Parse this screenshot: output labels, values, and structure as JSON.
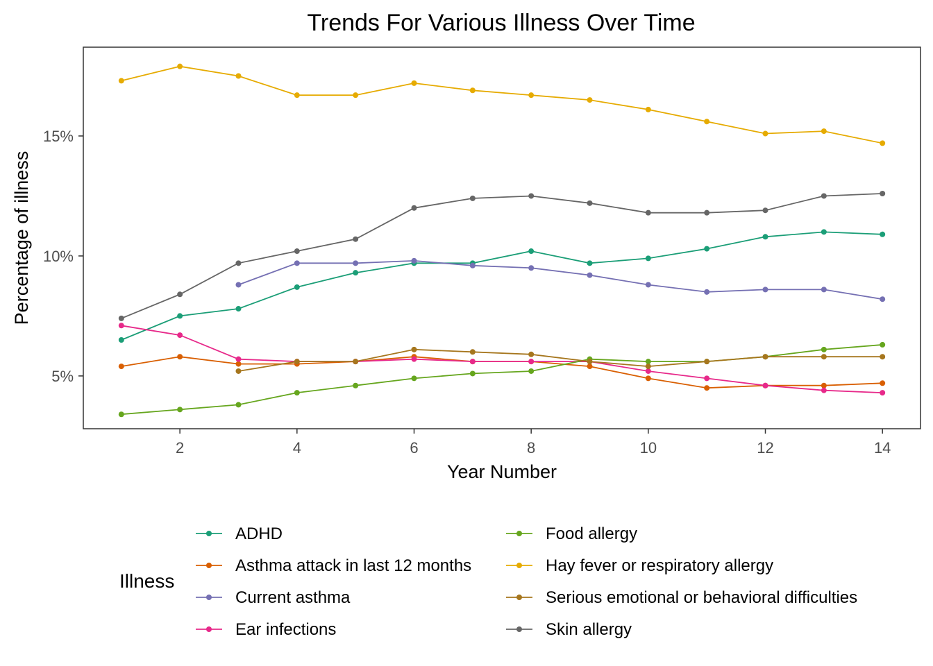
{
  "chart_data": {
    "type": "line",
    "title": "Trends For Various Illness Over Time",
    "xlabel": "Year Number",
    "ylabel": "Percentage of illness",
    "xlim": [
      0.35,
      14.65
    ],
    "ylim": [
      2.8,
      18.7
    ],
    "x_ticks": [
      2,
      4,
      6,
      8,
      10,
      12,
      14
    ],
    "x_tick_labels": [
      "2",
      "4",
      "6",
      "8",
      "10",
      "12",
      "14"
    ],
    "y_ticks": [
      5,
      10,
      15
    ],
    "y_tick_labels": [
      "5%",
      "10%",
      "15%"
    ],
    "grid": false,
    "legend": {
      "title": "Illness",
      "position": "bottom",
      "columns": 2
    },
    "series": [
      {
        "name": "ADHD",
        "color": "#1b9e77",
        "x": [
          1,
          2,
          3,
          4,
          5,
          6,
          7,
          8,
          9,
          10,
          11,
          12,
          13,
          14
        ],
        "values": [
          6.5,
          7.5,
          7.8,
          8.7,
          9.3,
          9.7,
          9.7,
          10.2,
          9.7,
          9.9,
          10.3,
          10.8,
          11.0,
          10.9
        ]
      },
      {
        "name": "Asthma attack in last 12 months",
        "color": "#d95f02",
        "x": [
          1,
          2,
          3,
          4,
          5,
          6,
          7,
          8,
          9,
          10,
          11,
          12,
          13,
          14
        ],
        "values": [
          5.4,
          5.8,
          5.5,
          5.5,
          5.6,
          5.8,
          5.6,
          5.6,
          5.4,
          4.9,
          4.5,
          4.6,
          4.6,
          4.7
        ]
      },
      {
        "name": "Current asthma",
        "color": "#7570b3",
        "x": [
          3,
          4,
          5,
          6,
          7,
          8,
          9,
          10,
          11,
          12,
          13,
          14
        ],
        "values": [
          8.8,
          9.7,
          9.7,
          9.8,
          9.6,
          9.5,
          9.2,
          8.8,
          8.5,
          8.6,
          8.6,
          8.2
        ]
      },
      {
        "name": "Ear infections",
        "color": "#e7298a",
        "x": [
          1,
          2,
          3,
          4,
          5,
          6,
          7,
          8,
          9,
          10,
          11,
          12,
          13,
          14
        ],
        "values": [
          7.1,
          6.7,
          5.7,
          5.6,
          5.6,
          5.7,
          5.6,
          5.6,
          5.6,
          5.2,
          4.9,
          4.6,
          4.4,
          4.3
        ]
      },
      {
        "name": "Food allergy",
        "color": "#66a61e",
        "x": [
          1,
          2,
          3,
          4,
          5,
          6,
          7,
          8,
          9,
          10,
          11,
          12,
          13,
          14
        ],
        "values": [
          3.4,
          3.6,
          3.8,
          4.3,
          4.6,
          4.9,
          5.1,
          5.2,
          5.7,
          5.6,
          5.6,
          5.8,
          6.1,
          6.3
        ]
      },
      {
        "name": "Hay fever or respiratory allergy",
        "color": "#e6ab02",
        "x": [
          1,
          2,
          3,
          4,
          5,
          6,
          7,
          8,
          9,
          10,
          11,
          12,
          13,
          14
        ],
        "values": [
          17.3,
          17.9,
          17.5,
          16.7,
          16.7,
          17.2,
          16.9,
          16.7,
          16.5,
          16.1,
          15.6,
          15.1,
          15.2,
          14.7
        ]
      },
      {
        "name": "Serious emotional or behavioral difficulties",
        "color": "#a6761d",
        "x": [
          3,
          4,
          5,
          6,
          7,
          8,
          9,
          10,
          11,
          12,
          13,
          14
        ],
        "values": [
          5.2,
          5.6,
          5.6,
          6.1,
          6.0,
          5.9,
          5.6,
          5.4,
          5.6,
          5.8,
          5.8,
          5.8
        ]
      },
      {
        "name": "Skin allergy",
        "color": "#666666",
        "x": [
          1,
          2,
          3,
          4,
          5,
          6,
          7,
          8,
          9,
          10,
          11,
          12,
          13,
          14
        ],
        "values": [
          7.4,
          8.4,
          9.7,
          10.2,
          10.7,
          12.0,
          12.4,
          12.5,
          12.2,
          11.8,
          11.8,
          11.9,
          12.5,
          12.6
        ]
      }
    ]
  }
}
